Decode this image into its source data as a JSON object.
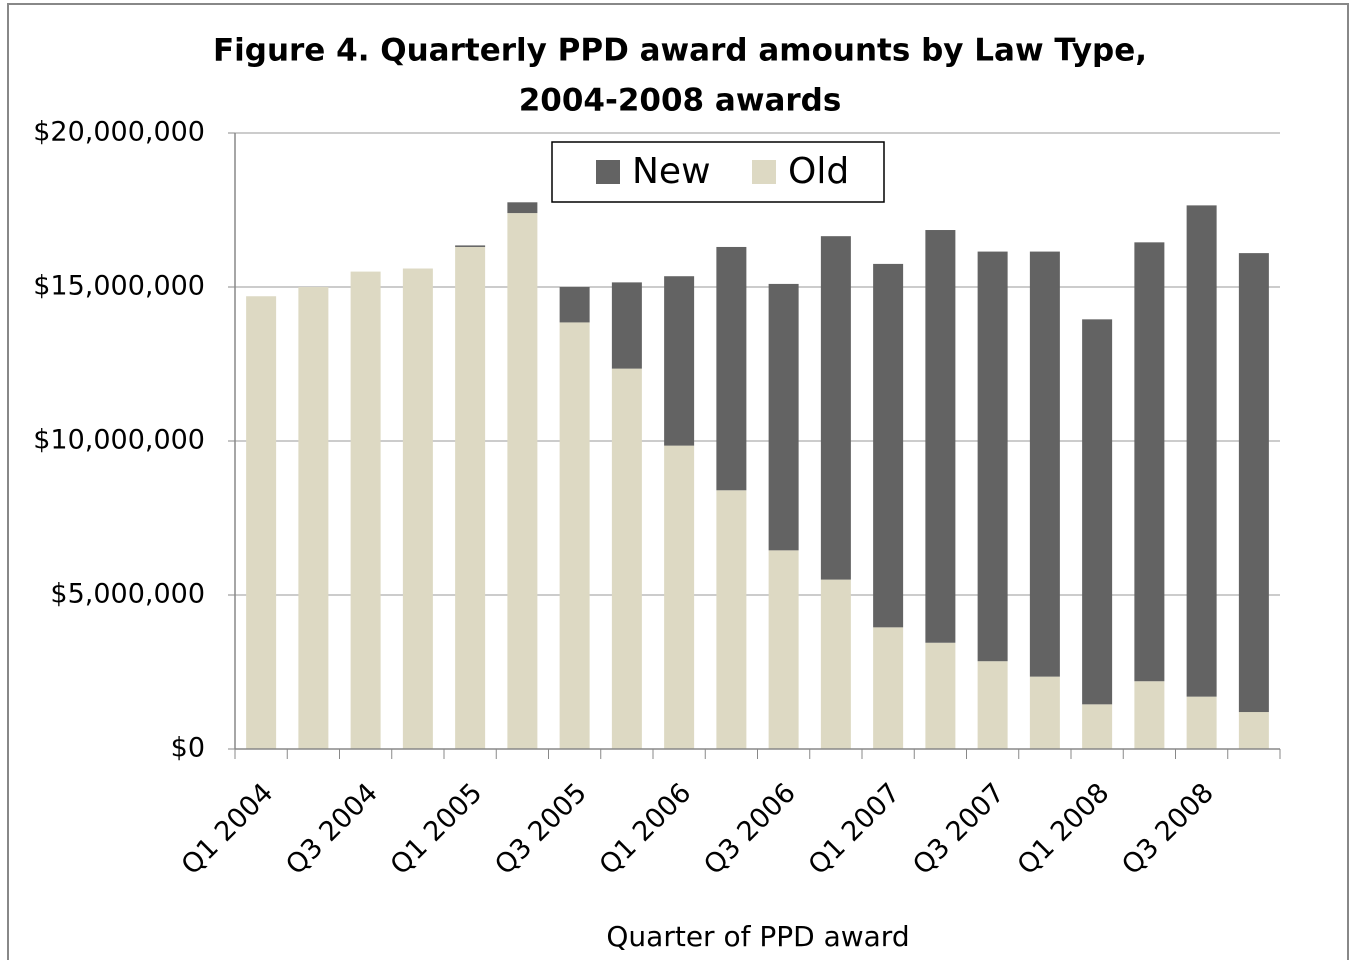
{
  "chart_data": {
    "type": "stacked_bar",
    "title": [
      "Figure 4.  Quarterly PPD award amounts by Law Type,",
      "2004-2008 awards"
    ],
    "x_label": "Quarter of PPD award",
    "categories": [
      "Q1 2004",
      null,
      "Q3 2004",
      null,
      "Q1 2005",
      null,
      "Q3 2005",
      null,
      "Q1 2006",
      null,
      "Q3 2006",
      null,
      "Q1 2007",
      null,
      "Q3 2007",
      null,
      "Q1 2008",
      null,
      "Q3 2008",
      null
    ],
    "series": [
      {
        "name": "New",
        "color": "#636363",
        "values": [
          0,
          0,
          0,
          0,
          50000,
          350000,
          1150000,
          2800000,
          5500000,
          7900000,
          8650000,
          11150000,
          11800000,
          13400000,
          13300000,
          13800000,
          12500000,
          14250000,
          15950000,
          14900000
        ]
      },
      {
        "name": "Old",
        "color": "#ddd9c3",
        "values": [
          14700000,
          15000000,
          15500000,
          15600000,
          16300000,
          17400000,
          13850000,
          12350000,
          9850000,
          8400000,
          6450000,
          5500000,
          3950000,
          3450000,
          2850000,
          2350000,
          1450000,
          2200000,
          1700000,
          1200000
        ]
      }
    ],
    "ylim": [
      0,
      20000000
    ],
    "yticks": [
      {
        "value": 0,
        "label": "$0"
      },
      {
        "value": 5000000,
        "label": "$5,000,000"
      },
      {
        "value": 10000000,
        "label": "$10,000,000"
      },
      {
        "value": 15000000,
        "label": "$15,000,000"
      },
      {
        "value": 20000000,
        "label": "$20,000,000"
      }
    ],
    "grid": true,
    "legend": "top"
  }
}
